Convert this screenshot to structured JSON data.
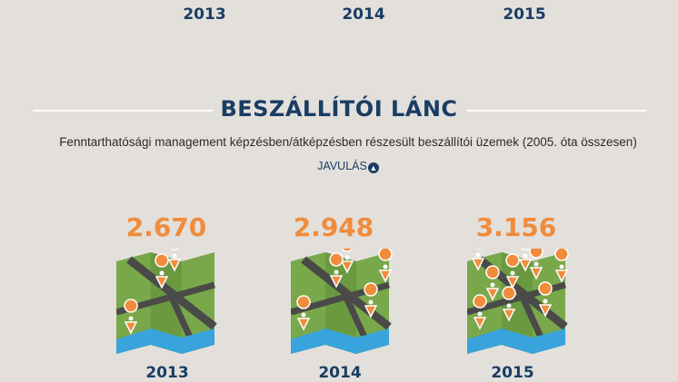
{
  "top_years": [
    "2013",
    "2014",
    "2015"
  ],
  "section": {
    "title": "BESZÁLLÍTÓI LÁNC",
    "subtitle": "Fenntarthatósági management képzésben/átképzésben részesült beszállítói üzemek (2005. óta összesen)",
    "improvement_label": "JAVULÁS",
    "improvement_icon": "arrow-up-circle-icon"
  },
  "stats": [
    {
      "year": "2013",
      "value": "2.670",
      "map_icon": "map-with-pins-icon",
      "pins": 4
    },
    {
      "year": "2014",
      "value": "2.948",
      "map_icon": "map-with-pins-icon",
      "pins": 5
    },
    {
      "year": "2015",
      "value": "3.156",
      "map_icon": "map-with-pins-icon",
      "pins": 9
    }
  ],
  "colors": {
    "background": "#e3e0dc",
    "navy": "#1a3d63",
    "orange": "#f08c3c",
    "map_green": "#79a84b",
    "map_road": "#4a4a48",
    "map_water": "#39a3dc"
  }
}
